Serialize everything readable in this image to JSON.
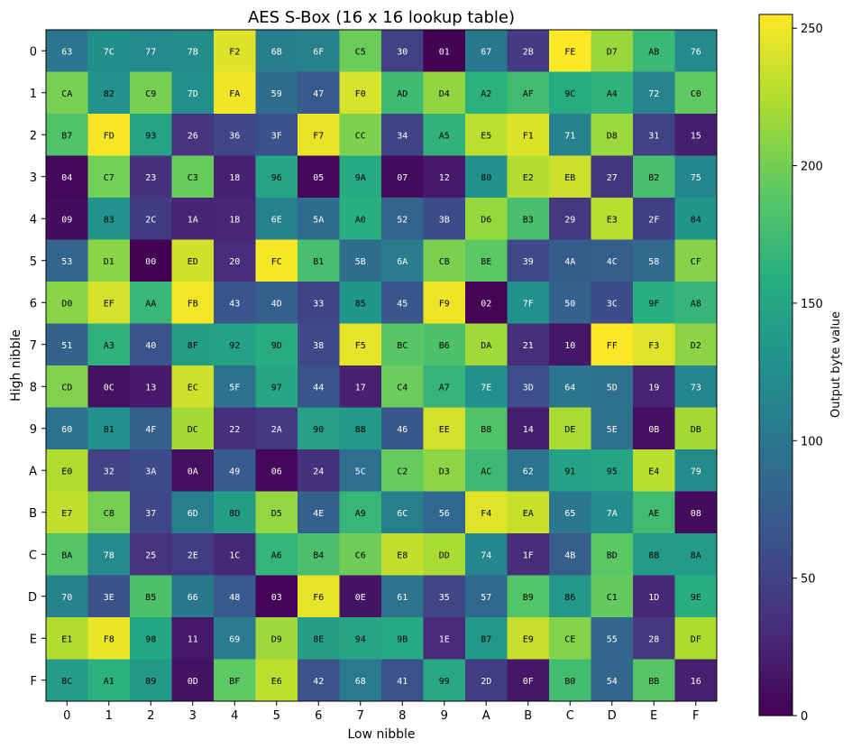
{
  "chart_data": {
    "type": "heatmap",
    "title": "AES S-Box (16 x 16 lookup table)",
    "xlabel": "Low nibble",
    "ylabel": "High nibble",
    "x_ticks": [
      "0",
      "1",
      "2",
      "3",
      "4",
      "5",
      "6",
      "7",
      "8",
      "9",
      "A",
      "B",
      "C",
      "D",
      "E",
      "F"
    ],
    "y_ticks": [
      "0",
      "1",
      "2",
      "3",
      "4",
      "5",
      "6",
      "7",
      "8",
      "9",
      "A",
      "B",
      "C",
      "D",
      "E",
      "F"
    ],
    "colormap": "viridis",
    "vmin": 0,
    "vmax": 255,
    "colorbar_label": "Output byte value",
    "colorbar_ticks": [
      0,
      50,
      100,
      150,
      200,
      250
    ],
    "rows": [
      [
        "63",
        "7C",
        "77",
        "7B",
        "F2",
        "6B",
        "6F",
        "C5",
        "30",
        "01",
        "67",
        "2B",
        "FE",
        "D7",
        "AB",
        "76"
      ],
      [
        "CA",
        "82",
        "C9",
        "7D",
        "FA",
        "59",
        "47",
        "F0",
        "AD",
        "D4",
        "A2",
        "AF",
        "9C",
        "A4",
        "72",
        "C0"
      ],
      [
        "B7",
        "FD",
        "93",
        "26",
        "36",
        "3F",
        "F7",
        "CC",
        "34",
        "A5",
        "E5",
        "F1",
        "71",
        "D8",
        "31",
        "15"
      ],
      [
        "04",
        "C7",
        "23",
        "C3",
        "18",
        "96",
        "05",
        "9A",
        "07",
        "12",
        "80",
        "E2",
        "EB",
        "27",
        "B2",
        "75"
      ],
      [
        "09",
        "83",
        "2C",
        "1A",
        "1B",
        "6E",
        "5A",
        "A0",
        "52",
        "3B",
        "D6",
        "B3",
        "29",
        "E3",
        "2F",
        "84"
      ],
      [
        "53",
        "D1",
        "00",
        "ED",
        "20",
        "FC",
        "B1",
        "5B",
        "6A",
        "CB",
        "BE",
        "39",
        "4A",
        "4C",
        "58",
        "CF"
      ],
      [
        "D0",
        "EF",
        "AA",
        "FB",
        "43",
        "4D",
        "33",
        "85",
        "45",
        "F9",
        "02",
        "7F",
        "50",
        "3C",
        "9F",
        "A8"
      ],
      [
        "51",
        "A3",
        "40",
        "8F",
        "92",
        "9D",
        "38",
        "F5",
        "BC",
        "B6",
        "DA",
        "21",
        "10",
        "FF",
        "F3",
        "D2"
      ],
      [
        "CD",
        "0C",
        "13",
        "EC",
        "5F",
        "97",
        "44",
        "17",
        "C4",
        "A7",
        "7E",
        "3D",
        "64",
        "5D",
        "19",
        "73"
      ],
      [
        "60",
        "81",
        "4F",
        "DC",
        "22",
        "2A",
        "90",
        "88",
        "46",
        "EE",
        "B8",
        "14",
        "DE",
        "5E",
        "0B",
        "DB"
      ],
      [
        "E0",
        "32",
        "3A",
        "0A",
        "49",
        "06",
        "24",
        "5C",
        "C2",
        "D3",
        "AC",
        "62",
        "91",
        "95",
        "E4",
        "79"
      ],
      [
        "E7",
        "C8",
        "37",
        "6D",
        "8D",
        "D5",
        "4E",
        "A9",
        "6C",
        "56",
        "F4",
        "EA",
        "65",
        "7A",
        "AE",
        "08"
      ],
      [
        "BA",
        "78",
        "25",
        "2E",
        "1C",
        "A6",
        "B4",
        "C6",
        "E8",
        "DD",
        "74",
        "1F",
        "4B",
        "BD",
        "8B",
        "8A"
      ],
      [
        "70",
        "3E",
        "B5",
        "66",
        "48",
        "03",
        "F6",
        "0E",
        "61",
        "35",
        "57",
        "B9",
        "86",
        "C1",
        "1D",
        "9E"
      ],
      [
        "E1",
        "F8",
        "98",
        "11",
        "69",
        "D9",
        "8E",
        "94",
        "9B",
        "1E",
        "87",
        "E9",
        "CE",
        "55",
        "28",
        "DF"
      ],
      [
        "8C",
        "A1",
        "89",
        "0D",
        "BF",
        "E6",
        "42",
        "68",
        "41",
        "99",
        "2D",
        "0F",
        "B0",
        "54",
        "BB",
        "16"
      ]
    ]
  }
}
